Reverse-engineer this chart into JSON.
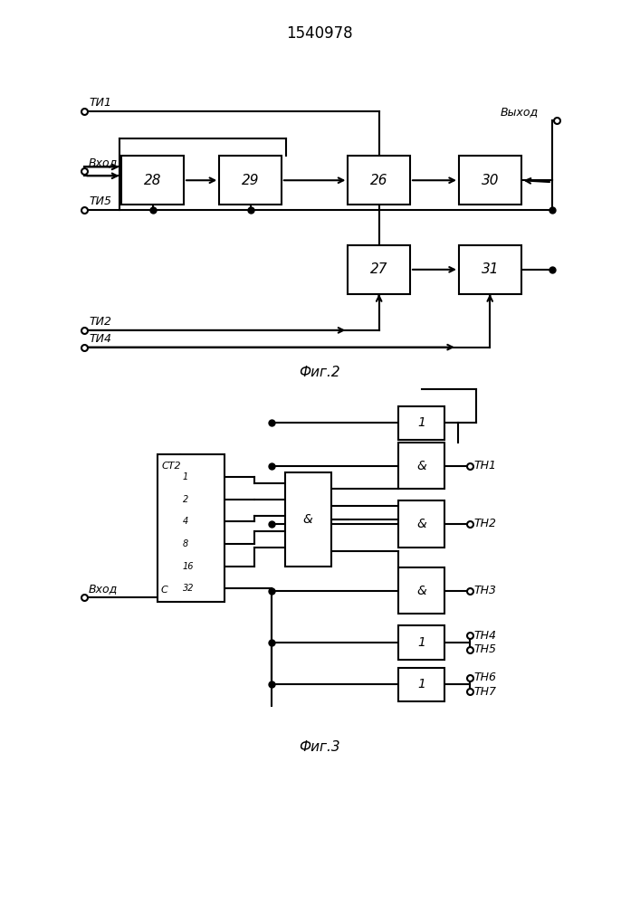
{
  "title": "1540978",
  "fig2_label": "Фиг.2",
  "fig3_label": "Фиг.3",
  "bg_color": "#ffffff",
  "line_color": "#000000"
}
